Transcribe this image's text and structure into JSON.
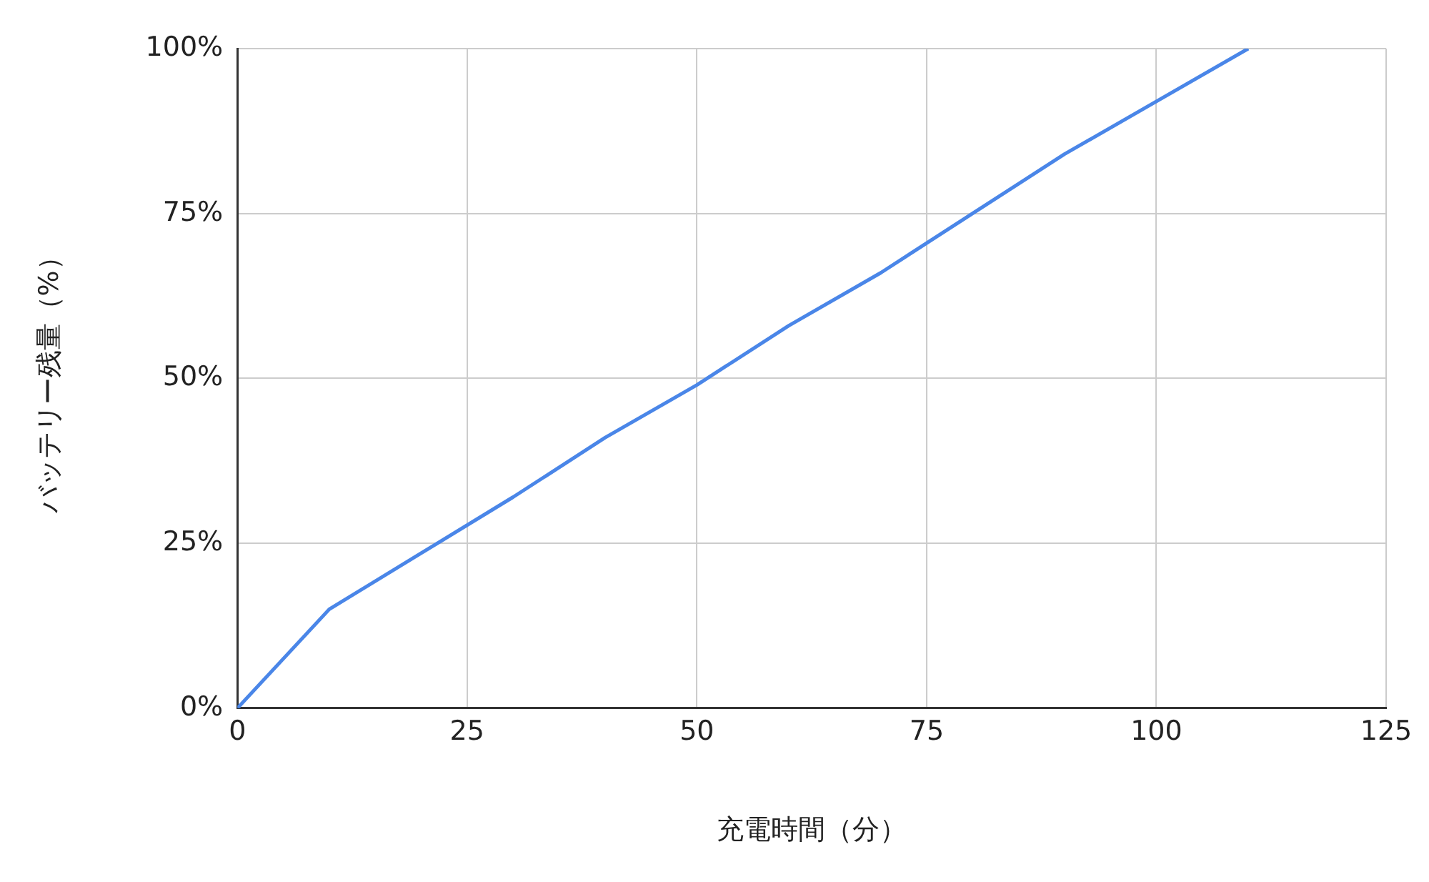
{
  "chart_data": {
    "type": "line",
    "xlabel": "充電時間（分）",
    "ylabel": "バッテリー残量（%）",
    "x": [
      0,
      10,
      20,
      30,
      40,
      50,
      60,
      70,
      80,
      90,
      100,
      110
    ],
    "series": [
      {
        "color": "#4a86e8",
        "values": [
          0,
          15,
          23.5,
          32,
          41,
          49,
          58,
          66,
          75,
          84,
          92,
          100
        ]
      }
    ],
    "xlim": [
      0,
      125
    ],
    "xticks": [
      0,
      25,
      50,
      75,
      100,
      125
    ],
    "ylim": [
      0,
      100
    ],
    "yticks": [
      {
        "value": 0,
        "label": "0%"
      },
      {
        "value": 25,
        "label": "25%"
      },
      {
        "value": 50,
        "label": "50%"
      },
      {
        "value": 75,
        "label": "75%"
      },
      {
        "value": 100,
        "label": "100%"
      }
    ],
    "grid": true,
    "legend": false,
    "marker": "none",
    "line_style": "solid"
  }
}
